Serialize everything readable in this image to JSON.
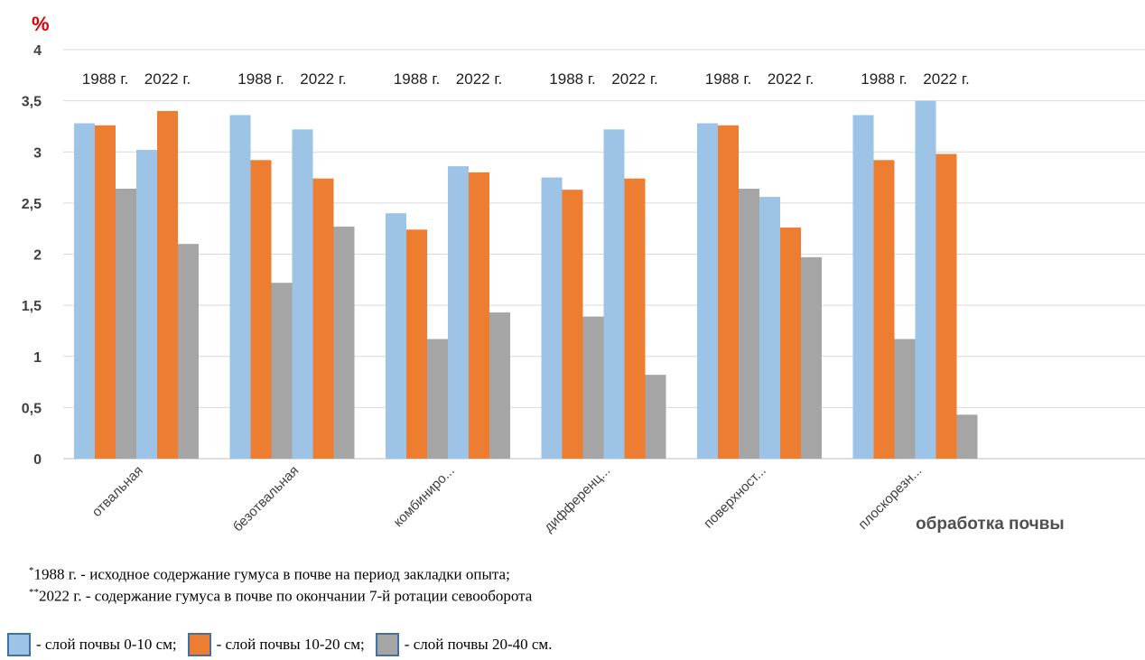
{
  "chart_data": {
    "type": "bar",
    "unit_label": "%",
    "xlabel": "обработка почвы",
    "ylim": [
      0,
      4
    ],
    "yticks": [
      "0",
      "0,5",
      "1",
      "1,5",
      "2",
      "2,5",
      "3",
      "3,5",
      "4"
    ],
    "grid": true,
    "categories": [
      "отвальная",
      "безотвальная",
      "комбиниро...",
      "дифференц...",
      "поверхност...",
      "плоскорезн..."
    ],
    "year_labels": [
      "1988 г.",
      "2022 г."
    ],
    "series": [
      {
        "name": "1988 г. - слой почвы 0-10 см",
        "color": "#9dc3e6",
        "values": [
          3.28,
          3.36,
          2.4,
          2.75,
          3.28,
          3.36
        ]
      },
      {
        "name": "1988 г. - слой почвы 10-20 см",
        "color": "#ed7d31",
        "values": [
          3.26,
          2.92,
          2.24,
          2.63,
          3.26,
          2.92
        ]
      },
      {
        "name": "1988 г. - слой почвы 20-40 см",
        "color": "#a5a5a5",
        "values": [
          2.64,
          1.72,
          1.17,
          1.39,
          2.64,
          1.17
        ]
      },
      {
        "name": "2022 г. - слой почвы 0-10 см",
        "color": "#9dc3e6",
        "values": [
          3.02,
          3.22,
          2.86,
          3.22,
          2.56,
          3.5
        ]
      },
      {
        "name": "2022 г. - слой почвы 10-20 см",
        "color": "#ed7d31",
        "values": [
          3.4,
          2.74,
          2.8,
          2.74,
          2.26,
          2.98
        ]
      },
      {
        "name": "2022 г. - слой почвы 20-40 см",
        "color": "#a5a5a5",
        "values": [
          2.1,
          2.27,
          1.43,
          0.82,
          1.97,
          0.43
        ]
      }
    ]
  },
  "notes": {
    "note1_mark": "*",
    "note1_text": "1988 г. - исходное содержание гумуса в почве на период закладки опыта;",
    "note2_mark": "**",
    "note2_text": "2022 г. - содержание гумуса в почве по окончании 7-й ротации севооборота"
  },
  "legend": [
    {
      "label": "- слой почвы 0-10 см;",
      "color": "#9dc3e6"
    },
    {
      "label": "- слой почвы 10-20 см;",
      "color": "#ed7d31"
    },
    {
      "label": "- слой почвы 20-40 см.",
      "color": "#a5a5a5"
    }
  ]
}
